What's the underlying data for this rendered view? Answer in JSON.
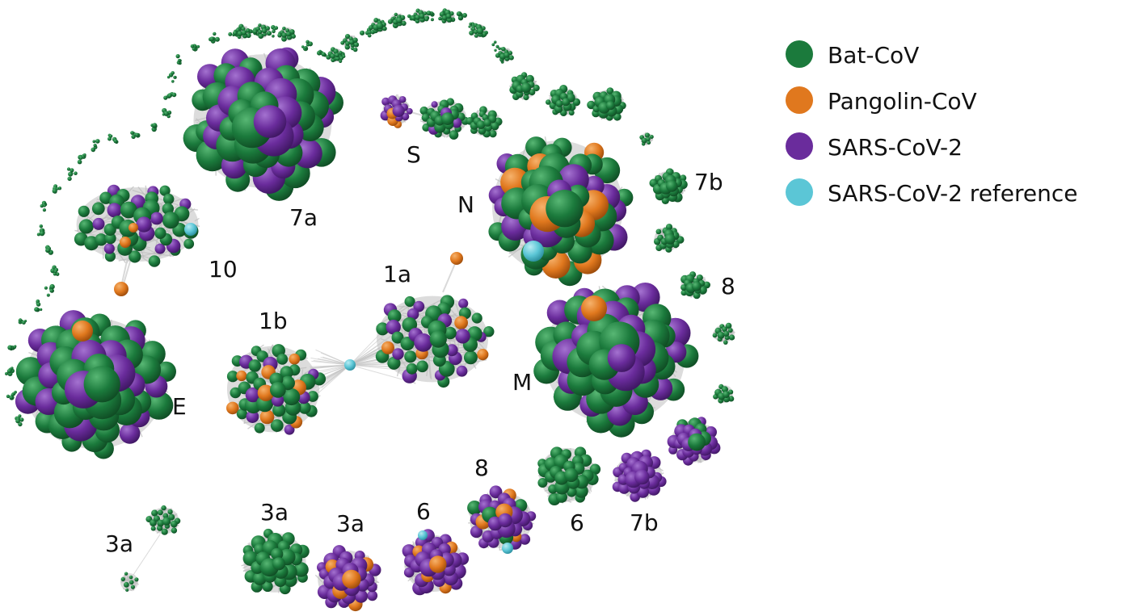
{
  "legend": {
    "items": [
      {
        "label": "Bat-CoV",
        "color": "#1b7a3c"
      },
      {
        "label": "Pangolin-CoV",
        "color": "#e0781e"
      },
      {
        "label": "SARS-CoV-2",
        "color": "#6a2c9c"
      },
      {
        "label": "SARS-CoV-2 reference",
        "color": "#5bc6d6"
      }
    ]
  },
  "cluster_labels": {
    "c7a": "7a",
    "cS": "S",
    "c7b_top": "7b",
    "cN": "N",
    "c10": "10",
    "c1a": "1a",
    "c1b": "1b",
    "c8_right": "8",
    "cE": "E",
    "cM": "M",
    "c3a_left": "3a",
    "c3a_mid": "3a",
    "c3a_right": "3a",
    "c6_bottom": "6",
    "c8_bottom": "8",
    "c6_right": "6",
    "c7b_bottom": "7b"
  },
  "palette": {
    "bat": "#1b7a3c",
    "pangolin": "#e0781e",
    "sars": "#6a2c9c",
    "reference": "#5bc6d6",
    "edge": "#cfcfcf"
  }
}
